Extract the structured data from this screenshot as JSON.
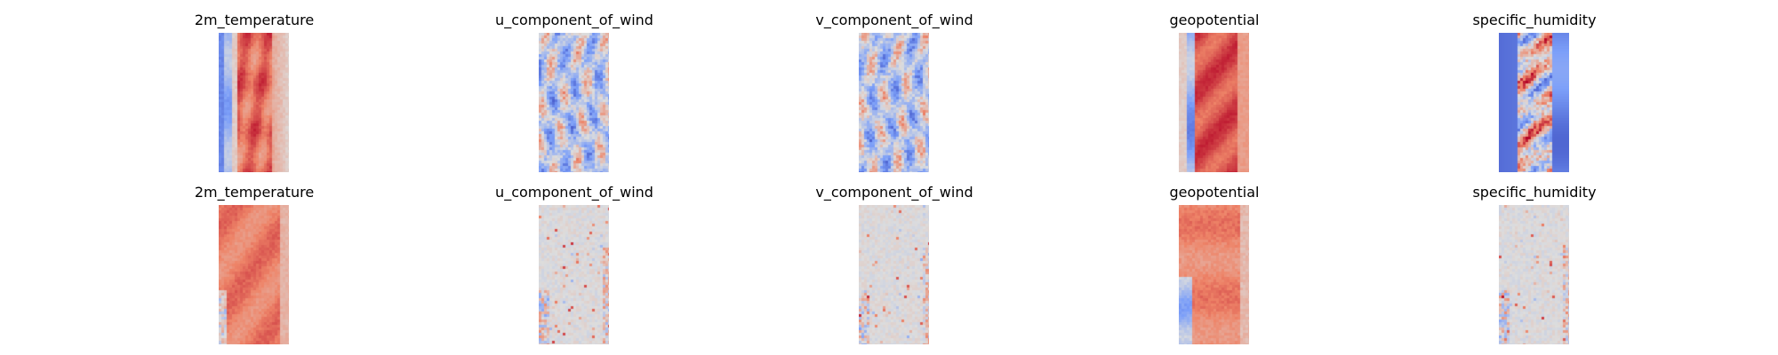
{
  "chart_data": {
    "type": "heatmap",
    "colormap": "coolwarm",
    "axes": "off",
    "rows": [
      {
        "panels": [
          {
            "title": "2m_temperature",
            "pattern": "temp_top"
          },
          {
            "title": "u_component_of_wind",
            "pattern": "wind_top"
          },
          {
            "title": "v_component_of_wind",
            "pattern": "wind_top"
          },
          {
            "title": "geopotential",
            "pattern": "geo_top"
          },
          {
            "title": "specific_humidity",
            "pattern": "hum_top"
          }
        ]
      },
      {
        "panels": [
          {
            "title": "2m_temperature",
            "pattern": "temp_bottom"
          },
          {
            "title": "u_component_of_wind",
            "pattern": "err_bottom"
          },
          {
            "title": "v_component_of_wind",
            "pattern": "err_bottom"
          },
          {
            "title": "geopotential",
            "pattern": "geo_bottom"
          },
          {
            "title": "specific_humidity",
            "pattern": "err_bottom"
          }
        ]
      }
    ]
  }
}
